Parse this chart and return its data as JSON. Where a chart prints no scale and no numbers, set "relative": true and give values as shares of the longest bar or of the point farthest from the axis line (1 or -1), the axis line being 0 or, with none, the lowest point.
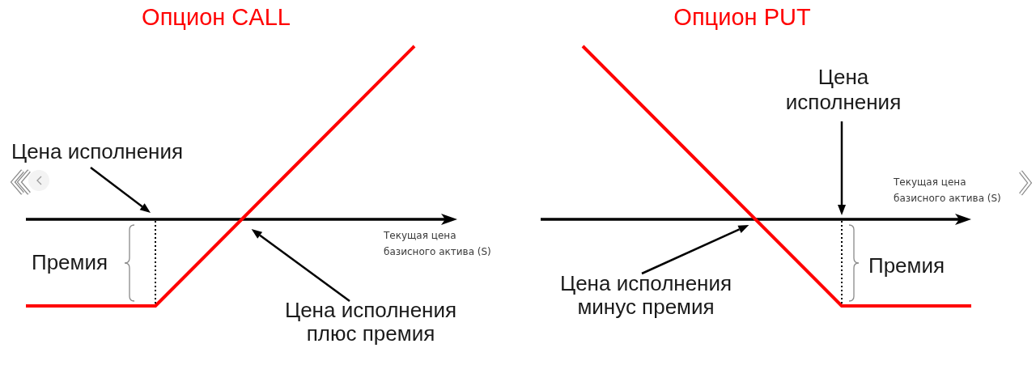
{
  "chart_data": [
    {
      "type": "line",
      "title": "Опцион CALL",
      "xlabel": "Текущая цена базисного актива (S)",
      "categories": [
        null,
        null,
        null,
        null
      ],
      "series": [
        {
          "color": "#ff0000",
          "values": [
            -0.5,
            -0.5,
            0.25,
            1
          ]
        }
      ],
      "relative": true,
      "tick_labels": false,
      "marker": "none",
      "line_style": "solid",
      "annotations": [
        "Цена исполнения",
        "Премия",
        "Цена исполнения плюс премия"
      ]
    },
    {
      "type": "line",
      "title": "Опцион PUT",
      "xlabel": "Текущая цена базисного актива (S)",
      "categories": [
        null,
        null,
        null,
        null
      ],
      "series": [
        {
          "color": "#ff0000",
          "values": [
            1,
            0.25,
            -0.5,
            -0.5
          ]
        }
      ],
      "relative": true,
      "tick_labels": false,
      "marker": "none",
      "line_style": "solid",
      "annotations": [
        "Цена исполнения",
        "Премия",
        "Цена исполнения минус премия"
      ]
    }
  ]
}
